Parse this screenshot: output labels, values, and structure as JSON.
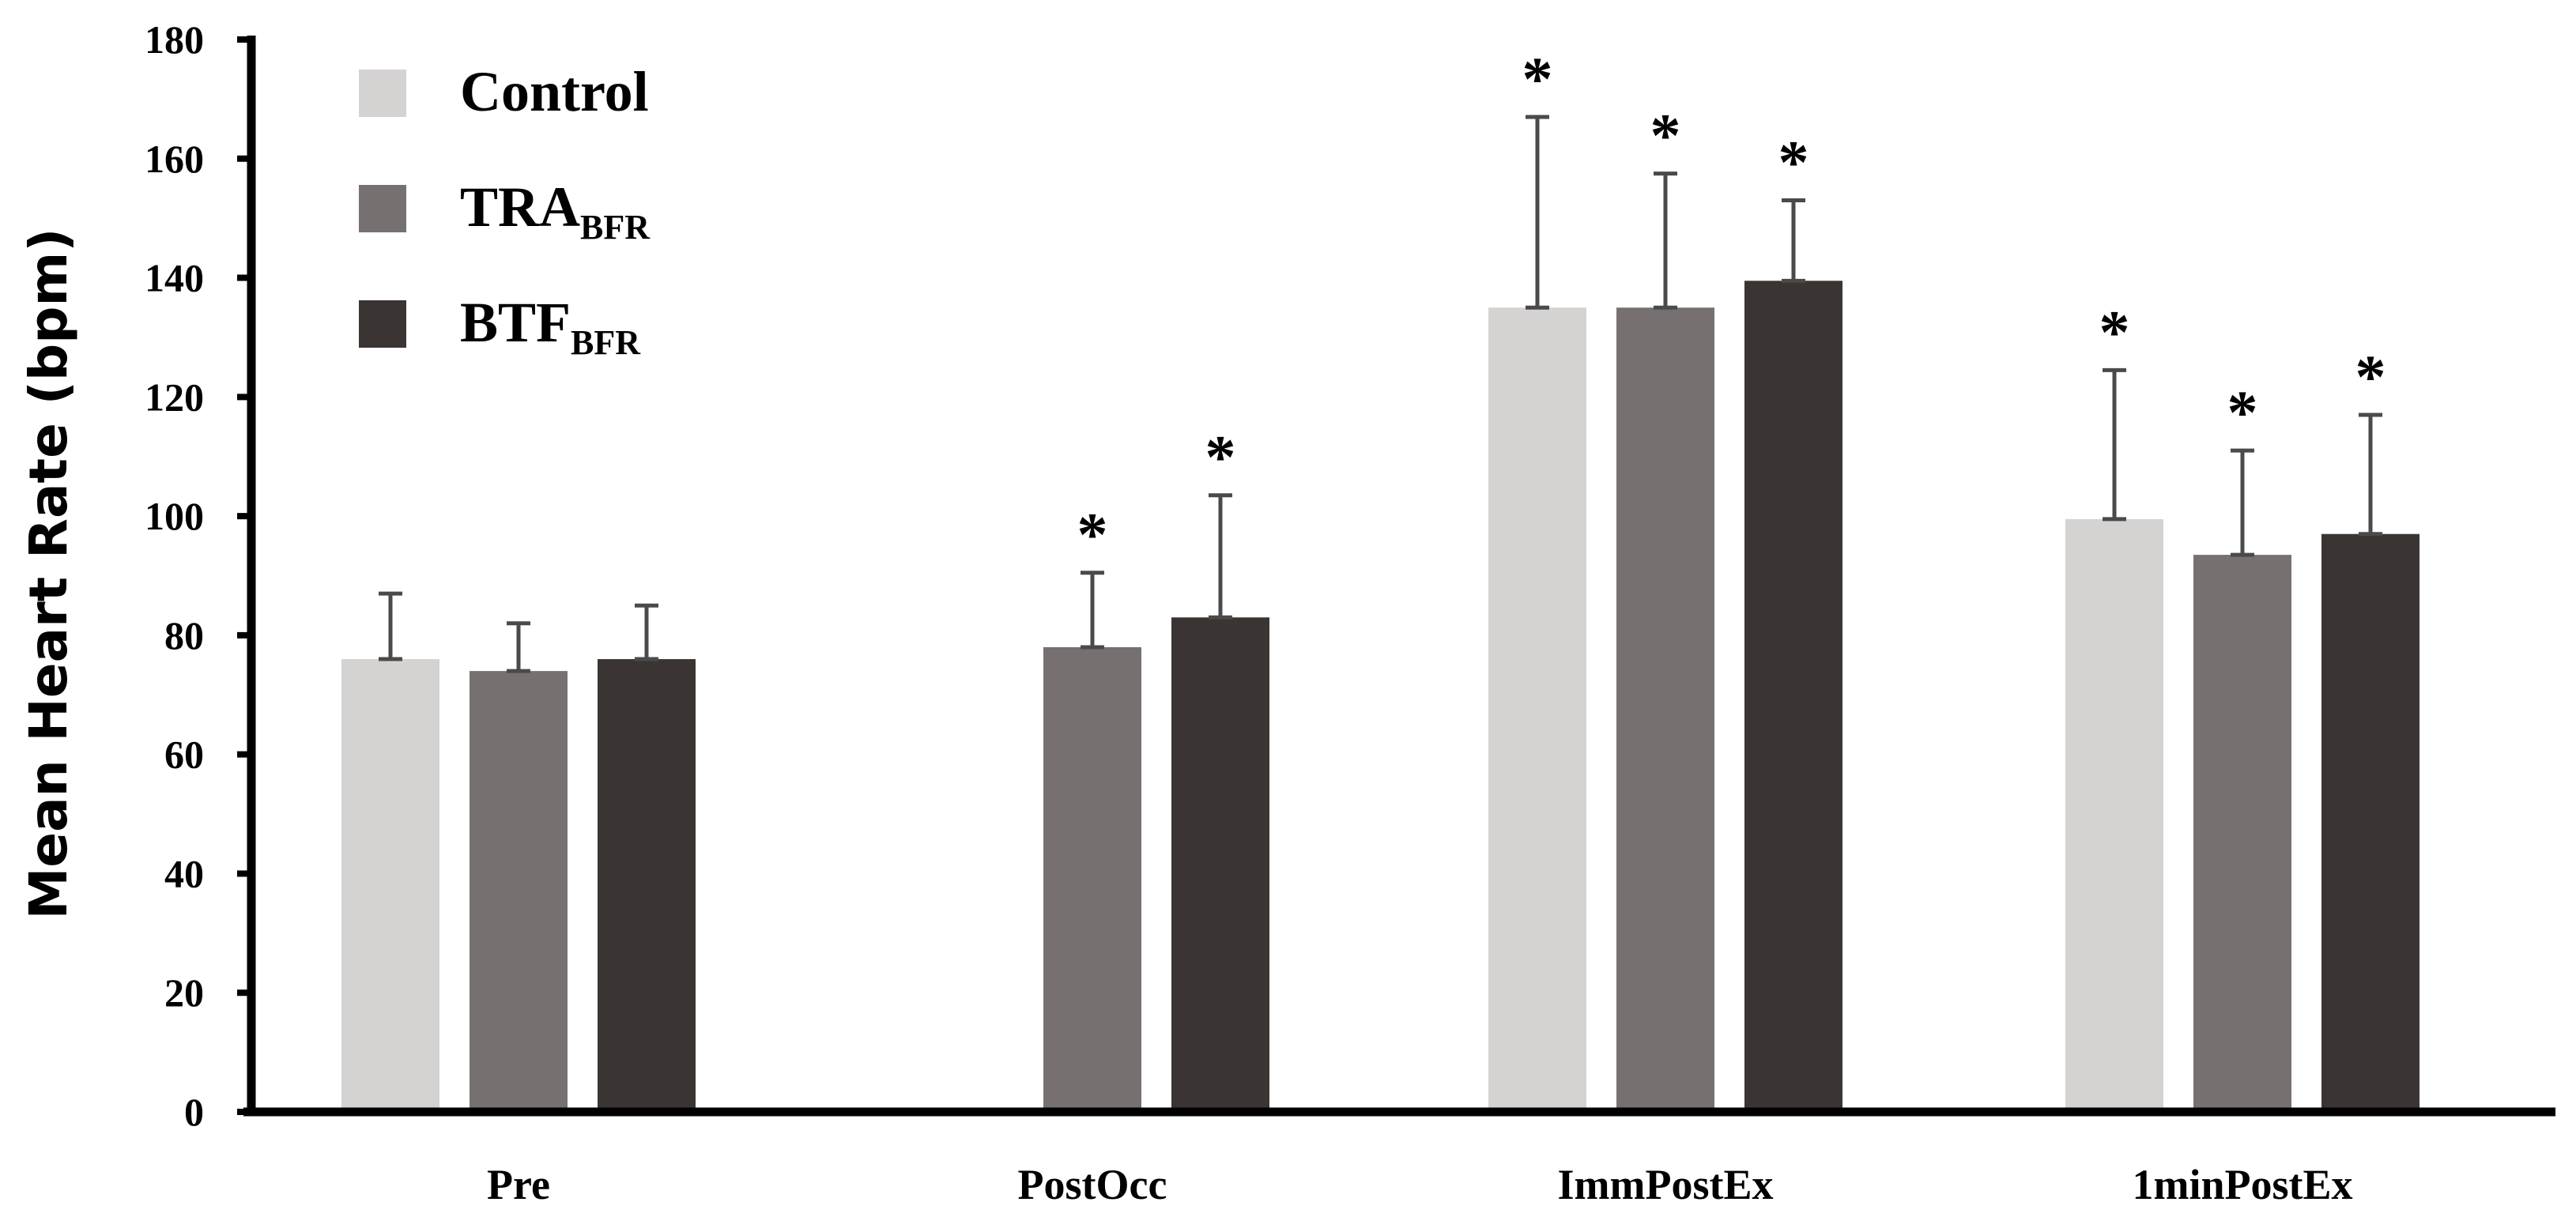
{
  "chart_data": {
    "type": "bar",
    "title": "",
    "xlabel": "",
    "ylabel": "Mean Heart Rate (bpm)",
    "ylim": [
      0,
      180
    ],
    "yticks": [
      0,
      20,
      40,
      60,
      80,
      100,
      120,
      140,
      160,
      180
    ],
    "grid": false,
    "legend_position": "top-left",
    "categories": [
      "Pre",
      "PostOcc",
      "ImmPostEx",
      "1minPostEx"
    ],
    "significance_marker": "*",
    "series": [
      {
        "name": "Control",
        "name_main": "Control",
        "name_sub": "",
        "color": "#d5d2d2",
        "values": [
          76,
          null,
          135,
          99.5
        ],
        "error_upper": [
          87,
          null,
          167,
          124.5
        ],
        "significant": [
          false,
          false,
          true,
          true
        ]
      },
      {
        "name": "TRABFR",
        "name_main": "TRA",
        "name_sub": "BFR",
        "color": "#767170",
        "values": [
          74,
          78,
          135,
          93.5
        ],
        "error_upper": [
          82,
          90.5,
          157.5,
          111
        ],
        "significant": [
          false,
          true,
          true,
          true
        ]
      },
      {
        "name": "BTFBFR",
        "name_main": "BTF",
        "name_sub": "BFR",
        "color": "#3a3533",
        "values": [
          76,
          83,
          139.5,
          97
        ],
        "error_upper": [
          85,
          103.5,
          153,
          117
        ],
        "significant": [
          false,
          true,
          true,
          true
        ]
      }
    ]
  }
}
